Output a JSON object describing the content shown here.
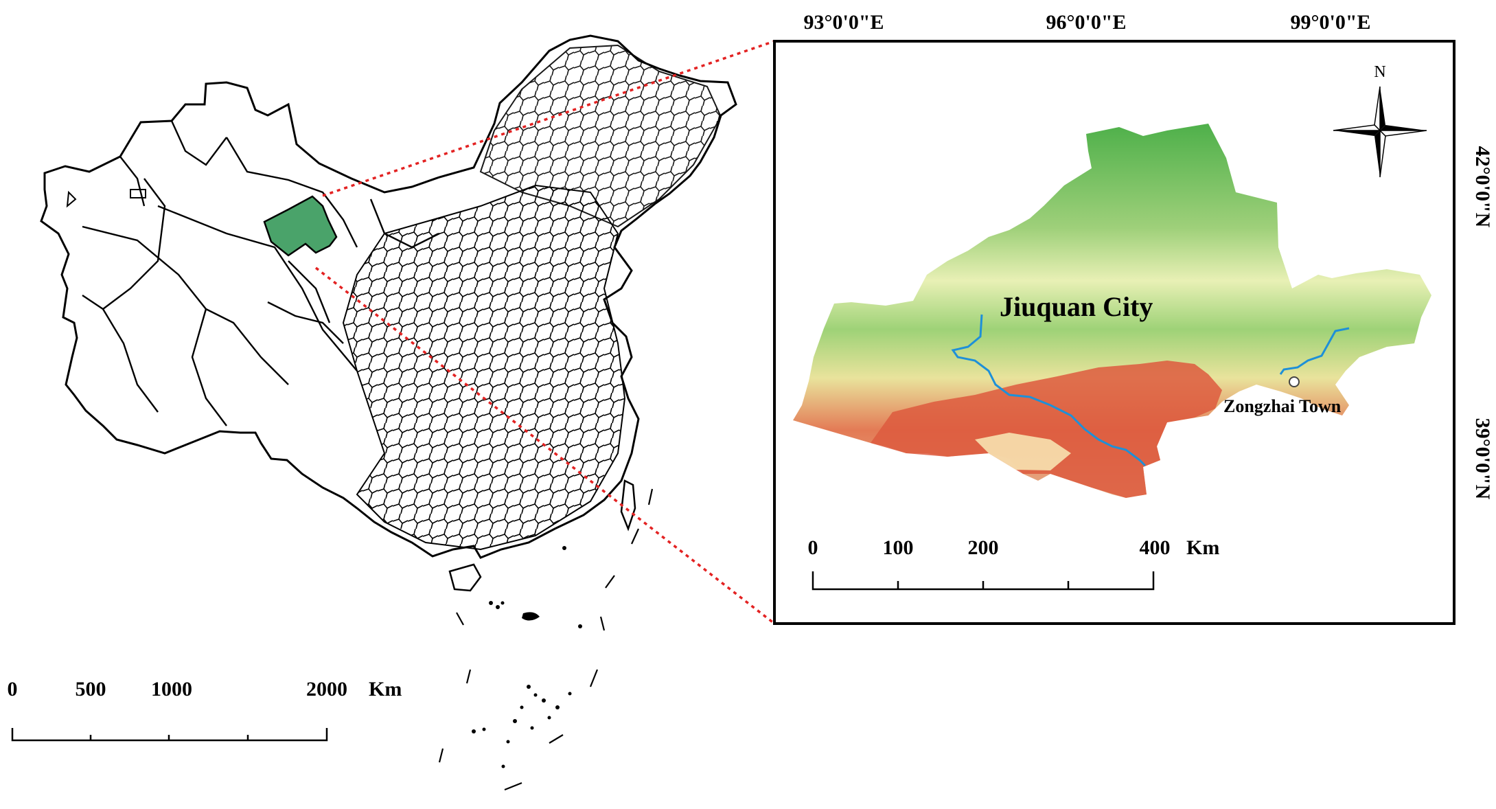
{
  "main_map": {
    "scale_bar": {
      "ticks": [
        "0",
        "500",
        "1000",
        "2000"
      ],
      "unit": "Km"
    }
  },
  "inset_map": {
    "longitude_labels": [
      "93°0'0\"E",
      "96°0'0\"E",
      "99°0'0\"E"
    ],
    "latitude_labels": [
      "42°0'0\"N",
      "39°0'0\"N"
    ],
    "city_label": "Jiuquan City",
    "town_label": "Zongzhai Town",
    "north_arrow_label": "N",
    "scale_bar": {
      "ticks": [
        "0",
        "100",
        "200",
        "400"
      ],
      "unit": "Km"
    }
  },
  "colors": {
    "highlight_region": "#4aa36a",
    "connector_line": "#e32222",
    "river": "#1e90d8",
    "elevation_low": "#2ea84a",
    "elevation_mid": "#f2eba4",
    "elevation_high": "#d6402e"
  }
}
